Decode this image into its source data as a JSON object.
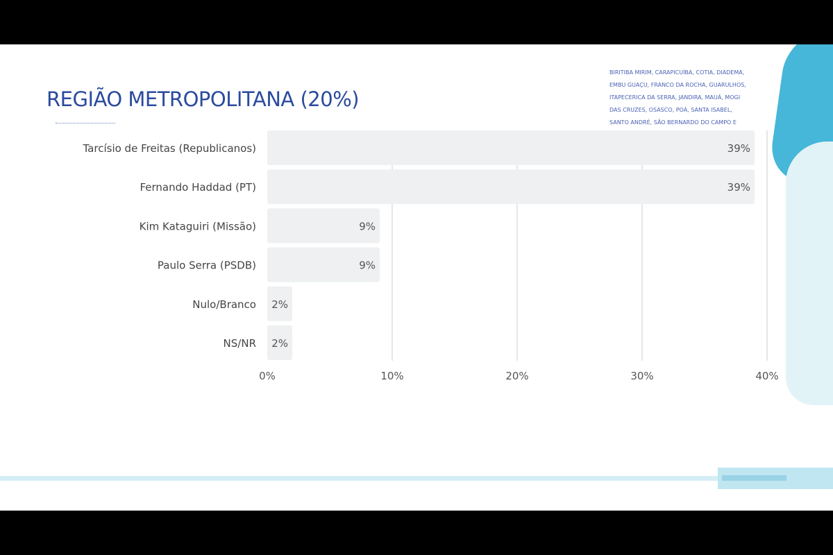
{
  "title": "REGIÃO METROPOLITANA (20%)",
  "cities": "BIRITIBA MIRIM, CARAPICUÍBA, COTIA, DIADEMA, EMBU GUAÇU, FRANCO DA ROCHA, GUARULHOS, ITAPECERICA DA SERRA, JANDIRA, MAUÁ, MOGI DAS CRUZES, OSASCO, POÁ, SANTA ISABEL, SANTO ANDRÉ, SÃO BERNARDO DO CAMPO E SÃO CAETANO DO SUL",
  "colors": {
    "bar": "#eef0f1",
    "grid": "#cccccc",
    "label": "#444444",
    "title": "#2a4a9e"
  },
  "chart_data": {
    "type": "bar",
    "orientation": "horizontal",
    "categories": [
      "Tarcísio de Freitas (Republicanos)",
      "Fernando Haddad (PT)",
      "Kim Kataguiri (Missão)",
      "Paulo Serra (PSDB)",
      "Nulo/Branco",
      "NS/NR"
    ],
    "values": [
      39,
      39,
      9,
      9,
      2,
      2
    ],
    "value_labels": [
      "39%",
      "39%",
      "9%",
      "9%",
      "2%",
      "2%"
    ],
    "xlim": [
      0,
      40
    ],
    "ticks": [
      0,
      10,
      20,
      30,
      40
    ],
    "tick_labels": [
      "0%",
      "10%",
      "20%",
      "30%",
      "40%"
    ],
    "grid": true,
    "legend": "none"
  }
}
